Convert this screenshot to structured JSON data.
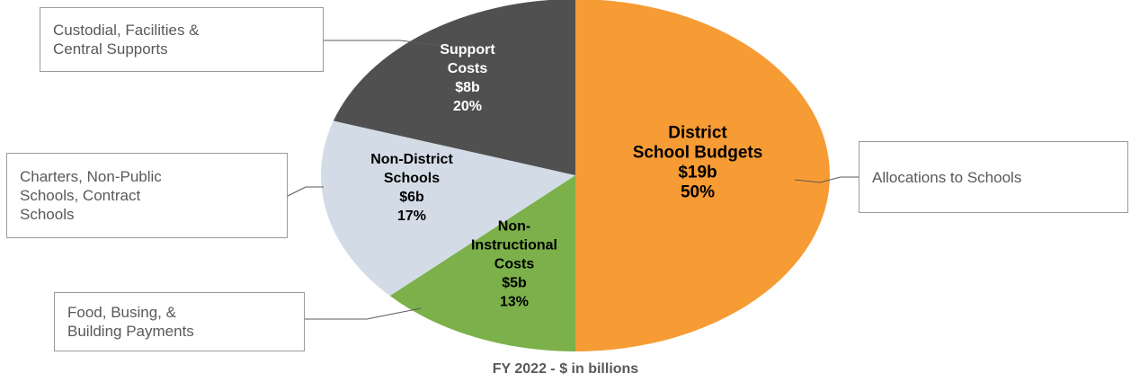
{
  "chart_data": {
    "type": "pie",
    "title": "",
    "subtitle": "FY 2022 - $ in billions",
    "slices": [
      {
        "label": [
          "District",
          "School Budgets"
        ],
        "amount": "$19b",
        "percent": "50%",
        "value": 50,
        "color": "#f79b35",
        "text_color": "#000000",
        "callout": "Allocations to Schools"
      },
      {
        "label": [
          "Non-",
          "Instructional",
          "Costs"
        ],
        "amount": "$5b",
        "percent": "13%",
        "value": 13,
        "color": "#7cb04a",
        "text_color": "#000000",
        "callout": "Food, Busing, &\nBuilding Payments"
      },
      {
        "label": [
          "Non-District",
          "Schools"
        ],
        "amount": "$6b",
        "percent": "17%",
        "value": 17,
        "color": "#d3dce6",
        "text_color": "#000000",
        "callout": "Charters, Non-Public\nSchools, Contract\nSchools"
      },
      {
        "label": [
          "Support",
          "Costs"
        ],
        "amount": "$8b",
        "percent": "20%",
        "value": 20,
        "color": "#505050",
        "text_color": "#ffffff",
        "callout": "Custodial, Facilities &\nCentral Supports"
      }
    ]
  }
}
